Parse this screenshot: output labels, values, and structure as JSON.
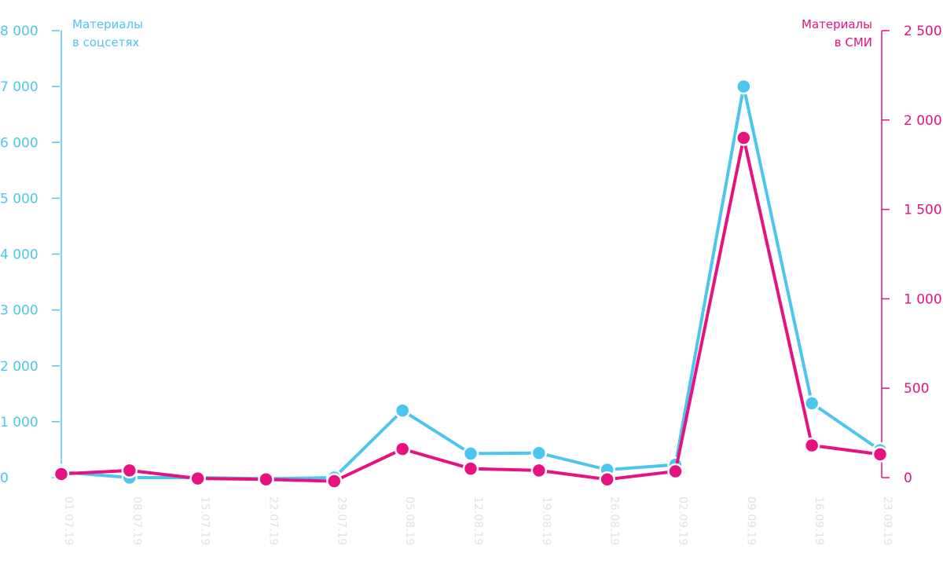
{
  "chart_data": {
    "type": "line",
    "x": [
      "01.07.19",
      "08.07.19",
      "15.07.19",
      "22.07.19",
      "29.07.19",
      "05.08.19",
      "12.08.19",
      "19.08.19",
      "26.08.19",
      "02.09.19",
      "09.09.19",
      "16.09.19",
      "23.09.19"
    ],
    "series": [
      {
        "name": "Материалы в соцсетях",
        "axis": "left",
        "color": "#4cc6ee",
        "values": [
          100,
          0,
          0,
          -20,
          0,
          1200,
          430,
          440,
          140,
          230,
          7000,
          1330,
          490
        ]
      },
      {
        "name": "Материалы в СМИ",
        "axis": "right",
        "color": "#e6127f",
        "values": [
          20,
          40,
          -5,
          -10,
          -20,
          160,
          50,
          40,
          -10,
          35,
          1900,
          180,
          130
        ]
      }
    ],
    "ylabel_left": [
      "Материалы",
      "в соцсетях"
    ],
    "ylabel_right": [
      "Материалы",
      "в СМИ"
    ],
    "y_left_ticks": [
      "0",
      "1 000",
      "2 000",
      "3 000",
      "4 000",
      "5 000",
      "6 000",
      "7 000",
      "8 000"
    ],
    "y_right_ticks": [
      "0",
      "500",
      "1 000",
      "1 500",
      "2 000",
      "2 500"
    ],
    "ylim_left": [
      0,
      8000
    ],
    "ylim_right": [
      0,
      2500
    ],
    "grid": false,
    "legend": "none",
    "colors": {
      "left_axis": "#4cc6ee",
      "right_axis": "#e6127f",
      "x_labels": "#e2e2e2"
    }
  }
}
